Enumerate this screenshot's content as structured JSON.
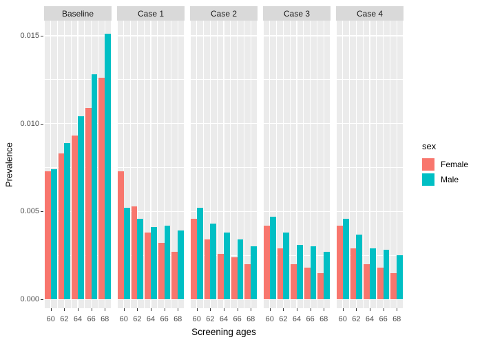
{
  "chart_data": {
    "type": "bar",
    "title": "",
    "xlabel": "Screening ages",
    "ylabel": "Prevalence",
    "categories": [
      "60",
      "62",
      "64",
      "66",
      "68"
    ],
    "y_ticks": [
      0,
      0.005,
      0.01,
      0.015
    ],
    "y_tick_labels": [
      "0.000",
      "0.005",
      "0.010",
      "0.015"
    ],
    "ylim": [
      0,
      0.0159
    ],
    "grid": true,
    "legend": {
      "title": "sex",
      "position": "right",
      "entries": [
        {
          "label": "Female",
          "color": "#F8766D"
        },
        {
          "label": "Male",
          "color": "#00BFC4"
        }
      ]
    },
    "facets": [
      {
        "label": "Baseline",
        "series": [
          {
            "name": "Female",
            "values": [
              0.0073,
              0.0083,
              0.0093,
              0.0109,
              0.0126
            ]
          },
          {
            "name": "Male",
            "values": [
              0.0074,
              0.0089,
              0.0104,
              0.0128,
              0.0151
            ]
          }
        ]
      },
      {
        "label": "Case 1",
        "series": [
          {
            "name": "Female",
            "values": [
              0.0073,
              0.0053,
              0.0038,
              0.0032,
              0.0027
            ]
          },
          {
            "name": "Male",
            "values": [
              0.0052,
              0.0046,
              0.0041,
              0.0042,
              0.0039
            ]
          }
        ]
      },
      {
        "label": "Case 2",
        "series": [
          {
            "name": "Female",
            "values": [
              0.0046,
              0.0034,
              0.0026,
              0.0024,
              0.002
            ]
          },
          {
            "name": "Male",
            "values": [
              0.0052,
              0.0043,
              0.0038,
              0.0034,
              0.003
            ]
          }
        ]
      },
      {
        "label": "Case 3",
        "series": [
          {
            "name": "Female",
            "values": [
              0.0042,
              0.0029,
              0.002,
              0.0018,
              0.0015
            ]
          },
          {
            "name": "Male",
            "values": [
              0.0047,
              0.0038,
              0.0031,
              0.003,
              0.0027
            ]
          }
        ]
      },
      {
        "label": "Case 4",
        "series": [
          {
            "name": "Female",
            "values": [
              0.0042,
              0.0029,
              0.002,
              0.0018,
              0.0015
            ]
          },
          {
            "name": "Male",
            "values": [
              0.0046,
              0.0037,
              0.0029,
              0.0028,
              0.0025
            ]
          }
        ]
      }
    ]
  }
}
